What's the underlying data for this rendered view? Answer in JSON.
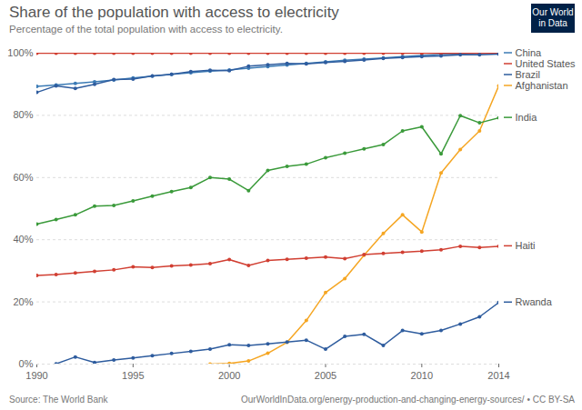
{
  "chart_data": {
    "type": "line",
    "title": "Share of the population with access to electricity",
    "subtitle": "Percentage of the total population with access to electricity.",
    "source": "Source: The World Bank",
    "url": "OurWorldInData.org/energy-production-and-changing-energy-sources/ • CC BY-SA",
    "logo": [
      "Our World",
      "in Data"
    ],
    "x": [
      1990,
      1991,
      1992,
      1993,
      1994,
      1995,
      1996,
      1997,
      1998,
      1999,
      2000,
      2001,
      2002,
      2003,
      2004,
      2005,
      2006,
      2007,
      2008,
      2009,
      2010,
      2011,
      2012,
      2013,
      2014
    ],
    "xlim": [
      1990,
      2014
    ],
    "xticks": [
      1990,
      1995,
      2000,
      2005,
      2010,
      2014
    ],
    "ylim": [
      0,
      100
    ],
    "yticks": [
      {
        "value": 0,
        "label": "0%"
      },
      {
        "value": 20,
        "label": "20%"
      },
      {
        "value": 40,
        "label": "40%"
      },
      {
        "value": 60,
        "label": "60%"
      },
      {
        "value": 80,
        "label": "80%"
      },
      {
        "value": 100,
        "label": "100%"
      }
    ],
    "grid": true,
    "marker": "circle",
    "series": [
      {
        "name": "China",
        "color": "#3b7bb5",
        "values": [
          89.3,
          89.8,
          90.3,
          90.8,
          91.4,
          92.0,
          92.6,
          93.2,
          93.7,
          94.2,
          94.6,
          95.2,
          95.7,
          96.2,
          96.7,
          97.2,
          97.7,
          98.1,
          98.5,
          98.9,
          99.3,
          99.6,
          99.8,
          99.9,
          100
        ]
      },
      {
        "name": "United States",
        "color": "#d13f32",
        "values": [
          100,
          100,
          100,
          100,
          100,
          100,
          100,
          100,
          100,
          100,
          100,
          100,
          100,
          100,
          100,
          100,
          100,
          100,
          100,
          100,
          100,
          100,
          100,
          100,
          100
        ]
      },
      {
        "name": "Brazil",
        "color": "#2e5c9e",
        "values": [
          87.4,
          89.5,
          88.7,
          90.0,
          91.5,
          91.7,
          92.7,
          93.2,
          94.1,
          94.5,
          94.4,
          95.8,
          96.3,
          96.7,
          96.6,
          97.0,
          97.4,
          97.8,
          98.3,
          98.6,
          98.9,
          99.1,
          99.5,
          99.5,
          99.7
        ]
      },
      {
        "name": "Afghanistan",
        "color": "#f5a623",
        "values": [
          null,
          null,
          null,
          null,
          null,
          null,
          null,
          null,
          null,
          0,
          0.2,
          1,
          3.5,
          7,
          14,
          23,
          27.5,
          35,
          42,
          48,
          42.5,
          61.5,
          69,
          75,
          89.5
        ]
      },
      {
        "name": "India",
        "color": "#3a9a3a",
        "values": [
          45,
          46.5,
          48,
          50.8,
          51,
          52.5,
          54,
          55.5,
          56.8,
          60,
          59.5,
          55.8,
          62.3,
          63.6,
          64.3,
          66.4,
          67.8,
          69.2,
          70.6,
          75,
          76.3,
          67.6,
          79.9,
          77.6,
          79.2
        ]
      },
      {
        "name": "Haiti",
        "color": "#d13f32",
        "values": [
          28.5,
          28.8,
          29.3,
          29.8,
          30.3,
          31.3,
          31.1,
          31.6,
          31.9,
          32.3,
          33.6,
          31.7,
          33.3,
          33.7,
          34.1,
          34.4,
          33.9,
          35.2,
          35.6,
          36,
          36.3,
          36.8,
          37.9,
          37.5,
          37.9
        ]
      },
      {
        "name": "Rwanda",
        "color": "#2e5c9e",
        "values": [
          null,
          0.1,
          2.3,
          0.5,
          1.3,
          2,
          2.7,
          3.4,
          4.1,
          4.8,
          6.2,
          6,
          6.5,
          7.1,
          7.7,
          4.8,
          8.9,
          9.6,
          6,
          10.8,
          9.7,
          10.8,
          12.9,
          15.2,
          19.8
        ]
      }
    ]
  }
}
